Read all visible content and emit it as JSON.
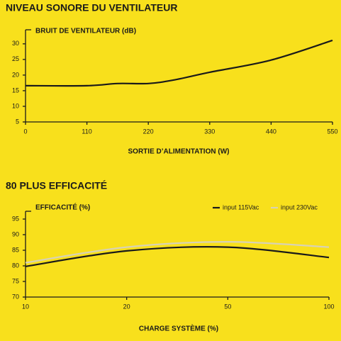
{
  "chart_data": [
    {
      "type": "line",
      "title": "NIVEAU SONORE DU VENTILATEUR",
      "y_label": "BRUIT DE VENTILATEUR (dB)",
      "x_label": "SORTIE D’ALIMENTATION (W)",
      "x": [
        0,
        110,
        165,
        220,
        265,
        330,
        440,
        550
      ],
      "values": [
        16.6,
        16.6,
        17.3,
        17.3,
        18.4,
        20.9,
        24.8,
        31.1
      ],
      "color": "#1a1a1a",
      "xlim": [
        0,
        550
      ],
      "xticks": [
        0,
        110,
        220,
        330,
        440,
        550
      ],
      "ylim": [
        5,
        34.5
      ],
      "yticks": [
        5,
        10,
        15,
        20,
        25,
        30
      ]
    },
    {
      "type": "line",
      "title": "80 PLUS EFFICACITÉ",
      "y_label": "EFFICACITÉ (%)",
      "x_label": "CHARGE SYSTÈME (%)",
      "categories": [
        "10",
        "20",
        "50",
        "100"
      ],
      "series": [
        {
          "name": "input 115Vac",
          "color": "#1a1a1a",
          "values": [
            79.8,
            84.8,
            86,
            82.7
          ]
        },
        {
          "name": "input 230Vac",
          "color": "#d8d2b4",
          "values": [
            81,
            86,
            87.7,
            86
          ]
        }
      ],
      "ylim": [
        70,
        97.5
      ],
      "yticks": [
        70,
        75,
        80,
        85,
        90,
        95
      ],
      "legend": "top-right"
    }
  ]
}
